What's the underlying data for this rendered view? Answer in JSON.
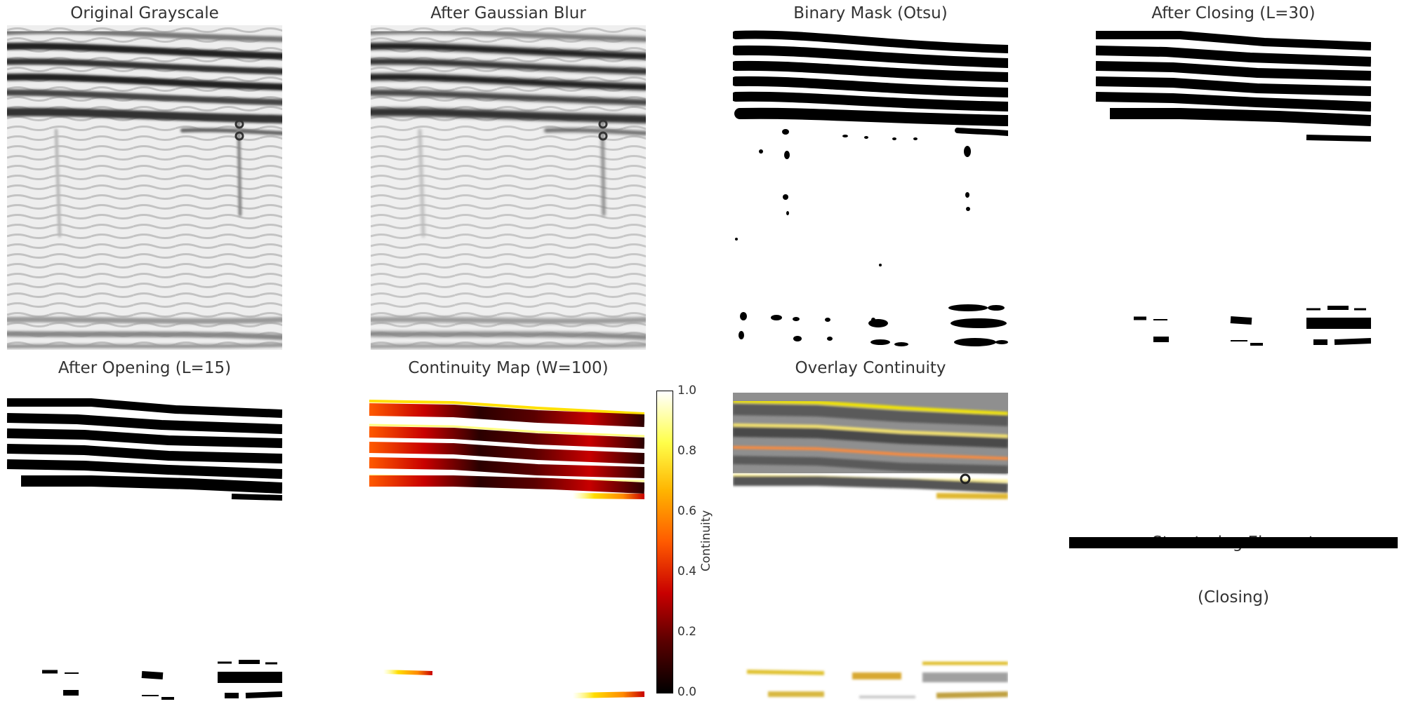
{
  "panels": {
    "p1": {
      "title": "Original Grayscale"
    },
    "p2": {
      "title": "After Gaussian Blur"
    },
    "p3": {
      "title": "Binary Mask (Otsu)"
    },
    "p4": {
      "title": "After Closing (L=30)"
    },
    "p5": {
      "title": "After Opening (L=15)"
    },
    "p6": {
      "title": "Continuity Map (W=100)"
    },
    "p7": {
      "title": "Overlay Continuity"
    },
    "p8": {
      "title_line1": "Structuring Element",
      "title_line2": "(Closing)"
    }
  },
  "colorbar": {
    "label": "Continuity",
    "ticks": [
      "1.0",
      "0.8",
      "0.6",
      "0.4",
      "0.2",
      "0.0"
    ],
    "colormap": "hot",
    "colors": [
      "#000000",
      "#5a0000",
      "#c80000",
      "#ff5a00",
      "#ffb400",
      "#ffff4a",
      "#ffffff"
    ]
  }
}
